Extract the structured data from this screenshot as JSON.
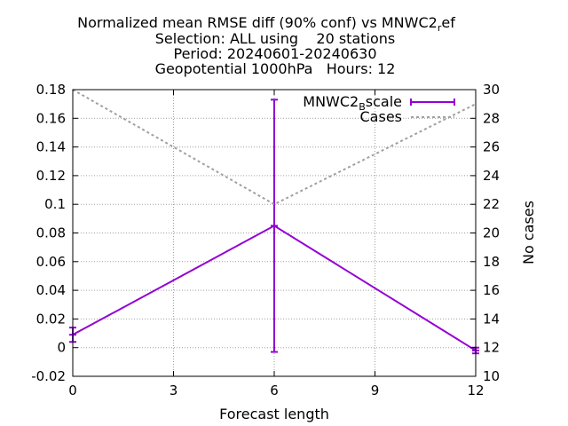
{
  "chart_data": {
    "type": "line",
    "title_lines": [
      "Normalized mean RMSE diff (90% conf) vs MNWC2",
      "Selection: ALL using    20 stations",
      "Period: 20240601-20240630",
      "Geopotential 1000hPa   Hours: 12"
    ],
    "title_line1_sub": "r",
    "title_line1_tail": "ef",
    "xlabel": "Forecast length",
    "ylabel": "",
    "y2label": "No cases",
    "xlim": [
      0,
      12
    ],
    "ylim": [
      -0.02,
      0.18
    ],
    "y2lim": [
      10,
      30
    ],
    "xticks": [
      "0",
      "3",
      "6",
      "9",
      "12"
    ],
    "yticks": [
      "-0.02",
      "0",
      "0.02",
      "0.04",
      "0.06",
      "0.08",
      "0.1",
      "0.12",
      "0.14",
      "0.16",
      "0.18"
    ],
    "y2ticks": [
      "10",
      "12",
      "14",
      "16",
      "18",
      "20",
      "22",
      "24",
      "26",
      "28",
      "30"
    ],
    "grid": true,
    "legend_position": "top-right",
    "series": [
      {
        "name": "MNWC2",
        "name_sub": "B",
        "name_tail": "scale",
        "axis": "left",
        "style": "line-errorbars",
        "color": "#9400d3",
        "x": [
          0,
          6,
          12
        ],
        "y": [
          0.009,
          0.085,
          -0.002
        ],
        "err_low": [
          0.004,
          -0.003,
          -0.004
        ],
        "err_high": [
          0.014,
          0.173,
          0.0
        ]
      },
      {
        "name": "Cases",
        "axis": "right",
        "style": "dashed",
        "color": "#a0a0a0",
        "x": [
          0,
          6,
          12
        ],
        "y": [
          30,
          22,
          29
        ]
      }
    ]
  }
}
